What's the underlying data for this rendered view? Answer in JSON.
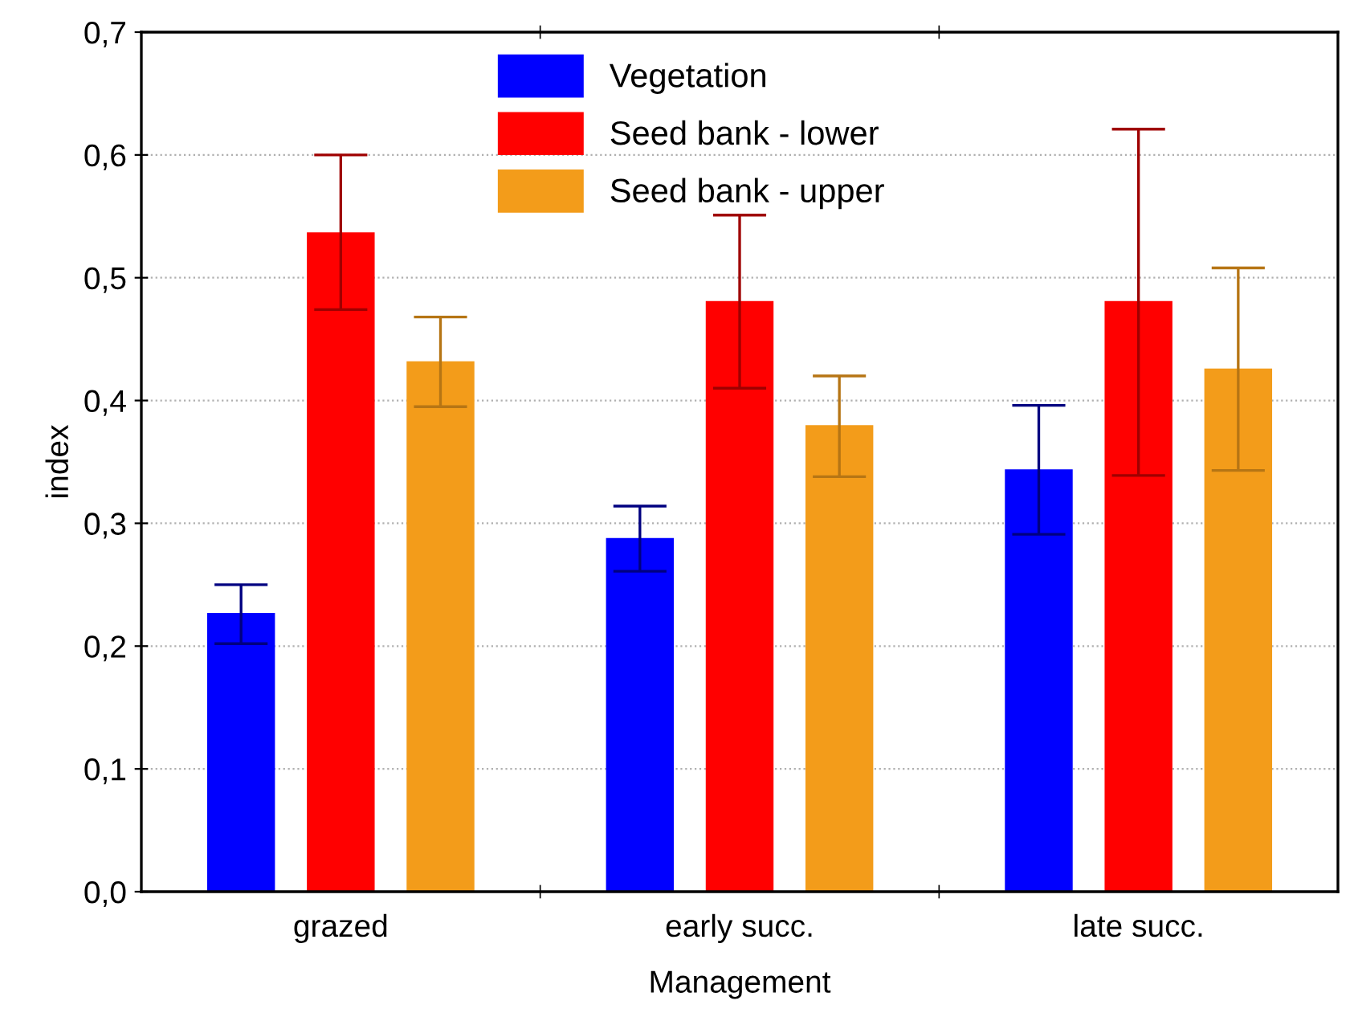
{
  "chart_data": {
    "type": "bar",
    "xlabel": "Management",
    "ylabel": "index",
    "categories": [
      "grazed",
      "early succ.",
      "late succ."
    ],
    "series": [
      {
        "name": "Vegetation",
        "color": "#0000ff",
        "values": [
          0.227,
          0.288,
          0.344
        ],
        "errors": [
          [
            0.202,
            0.25
          ],
          [
            0.261,
            0.314
          ],
          [
            0.291,
            0.396
          ]
        ]
      },
      {
        "name": "Seed bank - lower",
        "color": "#ff0000",
        "values": [
          0.537,
          0.481,
          0.481
        ],
        "errors": [
          [
            0.474,
            0.6
          ],
          [
            0.41,
            0.551
          ],
          [
            0.339,
            0.621
          ]
        ]
      },
      {
        "name": "Seed bank - upper",
        "color": "#f39c1a",
        "values": [
          0.432,
          0.38,
          0.426
        ],
        "errors": [
          [
            0.395,
            0.468
          ],
          [
            0.338,
            0.42
          ],
          [
            0.343,
            0.508
          ]
        ]
      }
    ],
    "ylim": [
      0,
      0.7
    ],
    "yticks": [
      {
        "value": 0,
        "label": "0,0"
      },
      {
        "value": 0.1,
        "label": "0,1"
      },
      {
        "value": 0.2,
        "label": "0,2"
      },
      {
        "value": 0.3,
        "label": "0,3"
      },
      {
        "value": 0.4,
        "label": "0,4"
      },
      {
        "value": 0.5,
        "label": "0,5"
      },
      {
        "value": 0.6,
        "label": "0,6"
      },
      {
        "value": 0.7,
        "label": "0,7"
      }
    ],
    "grid": "y",
    "legend": "top"
  }
}
